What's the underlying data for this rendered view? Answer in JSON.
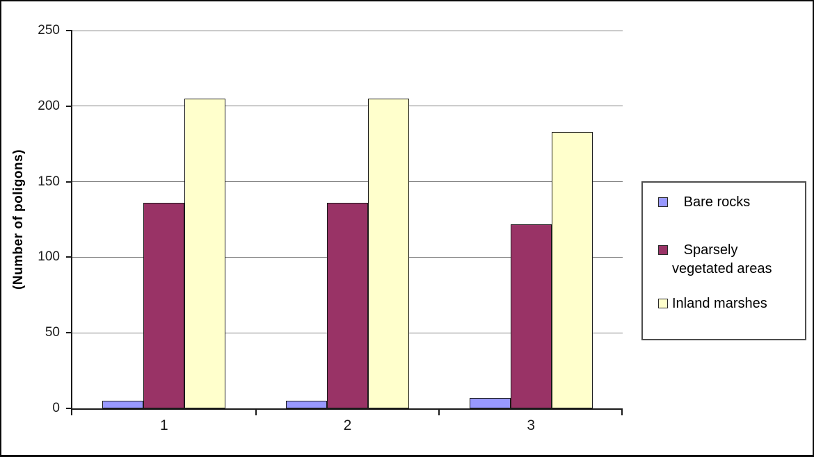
{
  "chart_data": {
    "type": "bar",
    "title": "",
    "xlabel": "",
    "ylabel": "(Number of poligons)",
    "categories": [
      "1",
      "2",
      "3"
    ],
    "series": [
      {
        "name": "Bare rocks",
        "legend_label": "   Bare rocks",
        "color": "#9999FF",
        "values": [
          5,
          5,
          7
        ]
      },
      {
        "name": "Sparsely vegetated areas",
        "legend_label": "   Sparsely vegetated areas",
        "color": "#993366",
        "values": [
          136,
          136,
          122
        ]
      },
      {
        "name": "Inland marshes",
        "legend_label": "Inland marshes",
        "color": "#FFFFCC",
        "values": [
          205,
          205,
          183
        ]
      }
    ],
    "ylim": [
      0,
      250
    ],
    "yticks": [
      0,
      50,
      100,
      150,
      200,
      250
    ],
    "grid": true,
    "legend_position": "right",
    "colors": {
      "axis": "#1a1a1a",
      "gridline": "#7f7f7f",
      "background": "#ffffff"
    }
  }
}
